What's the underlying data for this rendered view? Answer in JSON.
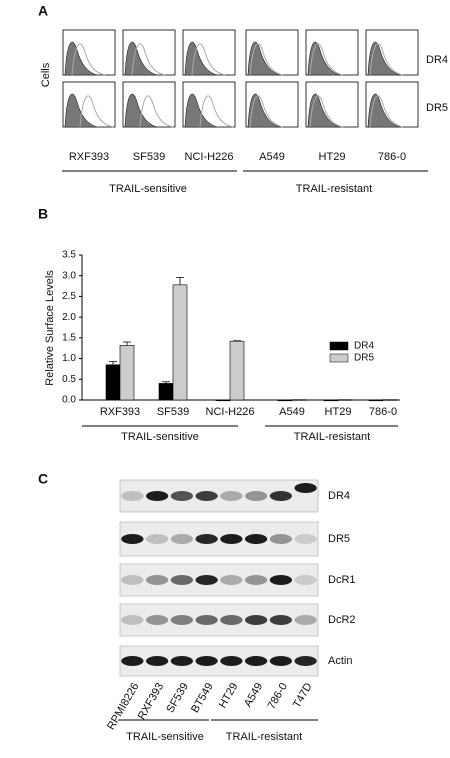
{
  "panel_a": {
    "label": "A",
    "y_label": "Cells",
    "rows": [
      "DR4",
      "DR5"
    ],
    "cell_lines": [
      "RXF393",
      "SF539",
      "NCI-H226",
      "A549",
      "HT29",
      "786-0"
    ],
    "groups": [
      "TRAIL-sensitive",
      "TRAIL-resistant"
    ]
  },
  "chart_data": {
    "type": "bar",
    "panel_label": "B",
    "y_label": "Relative Surface Levels",
    "categories": [
      "RXF393",
      "SF539",
      "NCI-H226",
      "A549",
      "HT29",
      "786-0"
    ],
    "series": [
      {
        "name": "DR4",
        "color": "#000000",
        "values": [
          0.85,
          0.4,
          0,
          0,
          0,
          0
        ],
        "errors": [
          0.08,
          0.04,
          0,
          0,
          0,
          0
        ]
      },
      {
        "name": "DR5",
        "color": "#cccccc",
        "values": [
          1.32,
          2.78,
          1.42,
          0.01,
          0.01,
          0.01
        ],
        "errors": [
          0.08,
          0.18,
          0.01,
          0,
          0,
          0
        ]
      }
    ],
    "ylim": [
      0,
      3.5
    ],
    "yticks": [
      {
        "value": 0,
        "label": "0.0"
      },
      {
        "value": 0.5,
        "label": "0.5"
      },
      {
        "value": 1,
        "label": "1.0"
      },
      {
        "value": 1.5,
        "label": "1.5"
      },
      {
        "value": 2,
        "label": "2.0"
      },
      {
        "value": 2.5,
        "label": "2.5"
      },
      {
        "value": 3,
        "label": "3.0"
      },
      {
        "value": 3.5,
        "label": "3.5"
      }
    ],
    "groups": [
      "TRAIL-sensitive",
      "TRAIL-resistant"
    ],
    "legend": "right"
  },
  "panel_c": {
    "label": "C",
    "bands": [
      "DR4",
      "DR5",
      "DcR1",
      "DcR2",
      "Actin"
    ],
    "lanes": [
      "RPMI8226",
      "RXF393",
      "SF539",
      "BT549",
      "HT29",
      "A549",
      "786-0",
      "T47D"
    ],
    "groups": [
      "TRAIL-sensitive",
      "TRAIL-resistant"
    ]
  }
}
